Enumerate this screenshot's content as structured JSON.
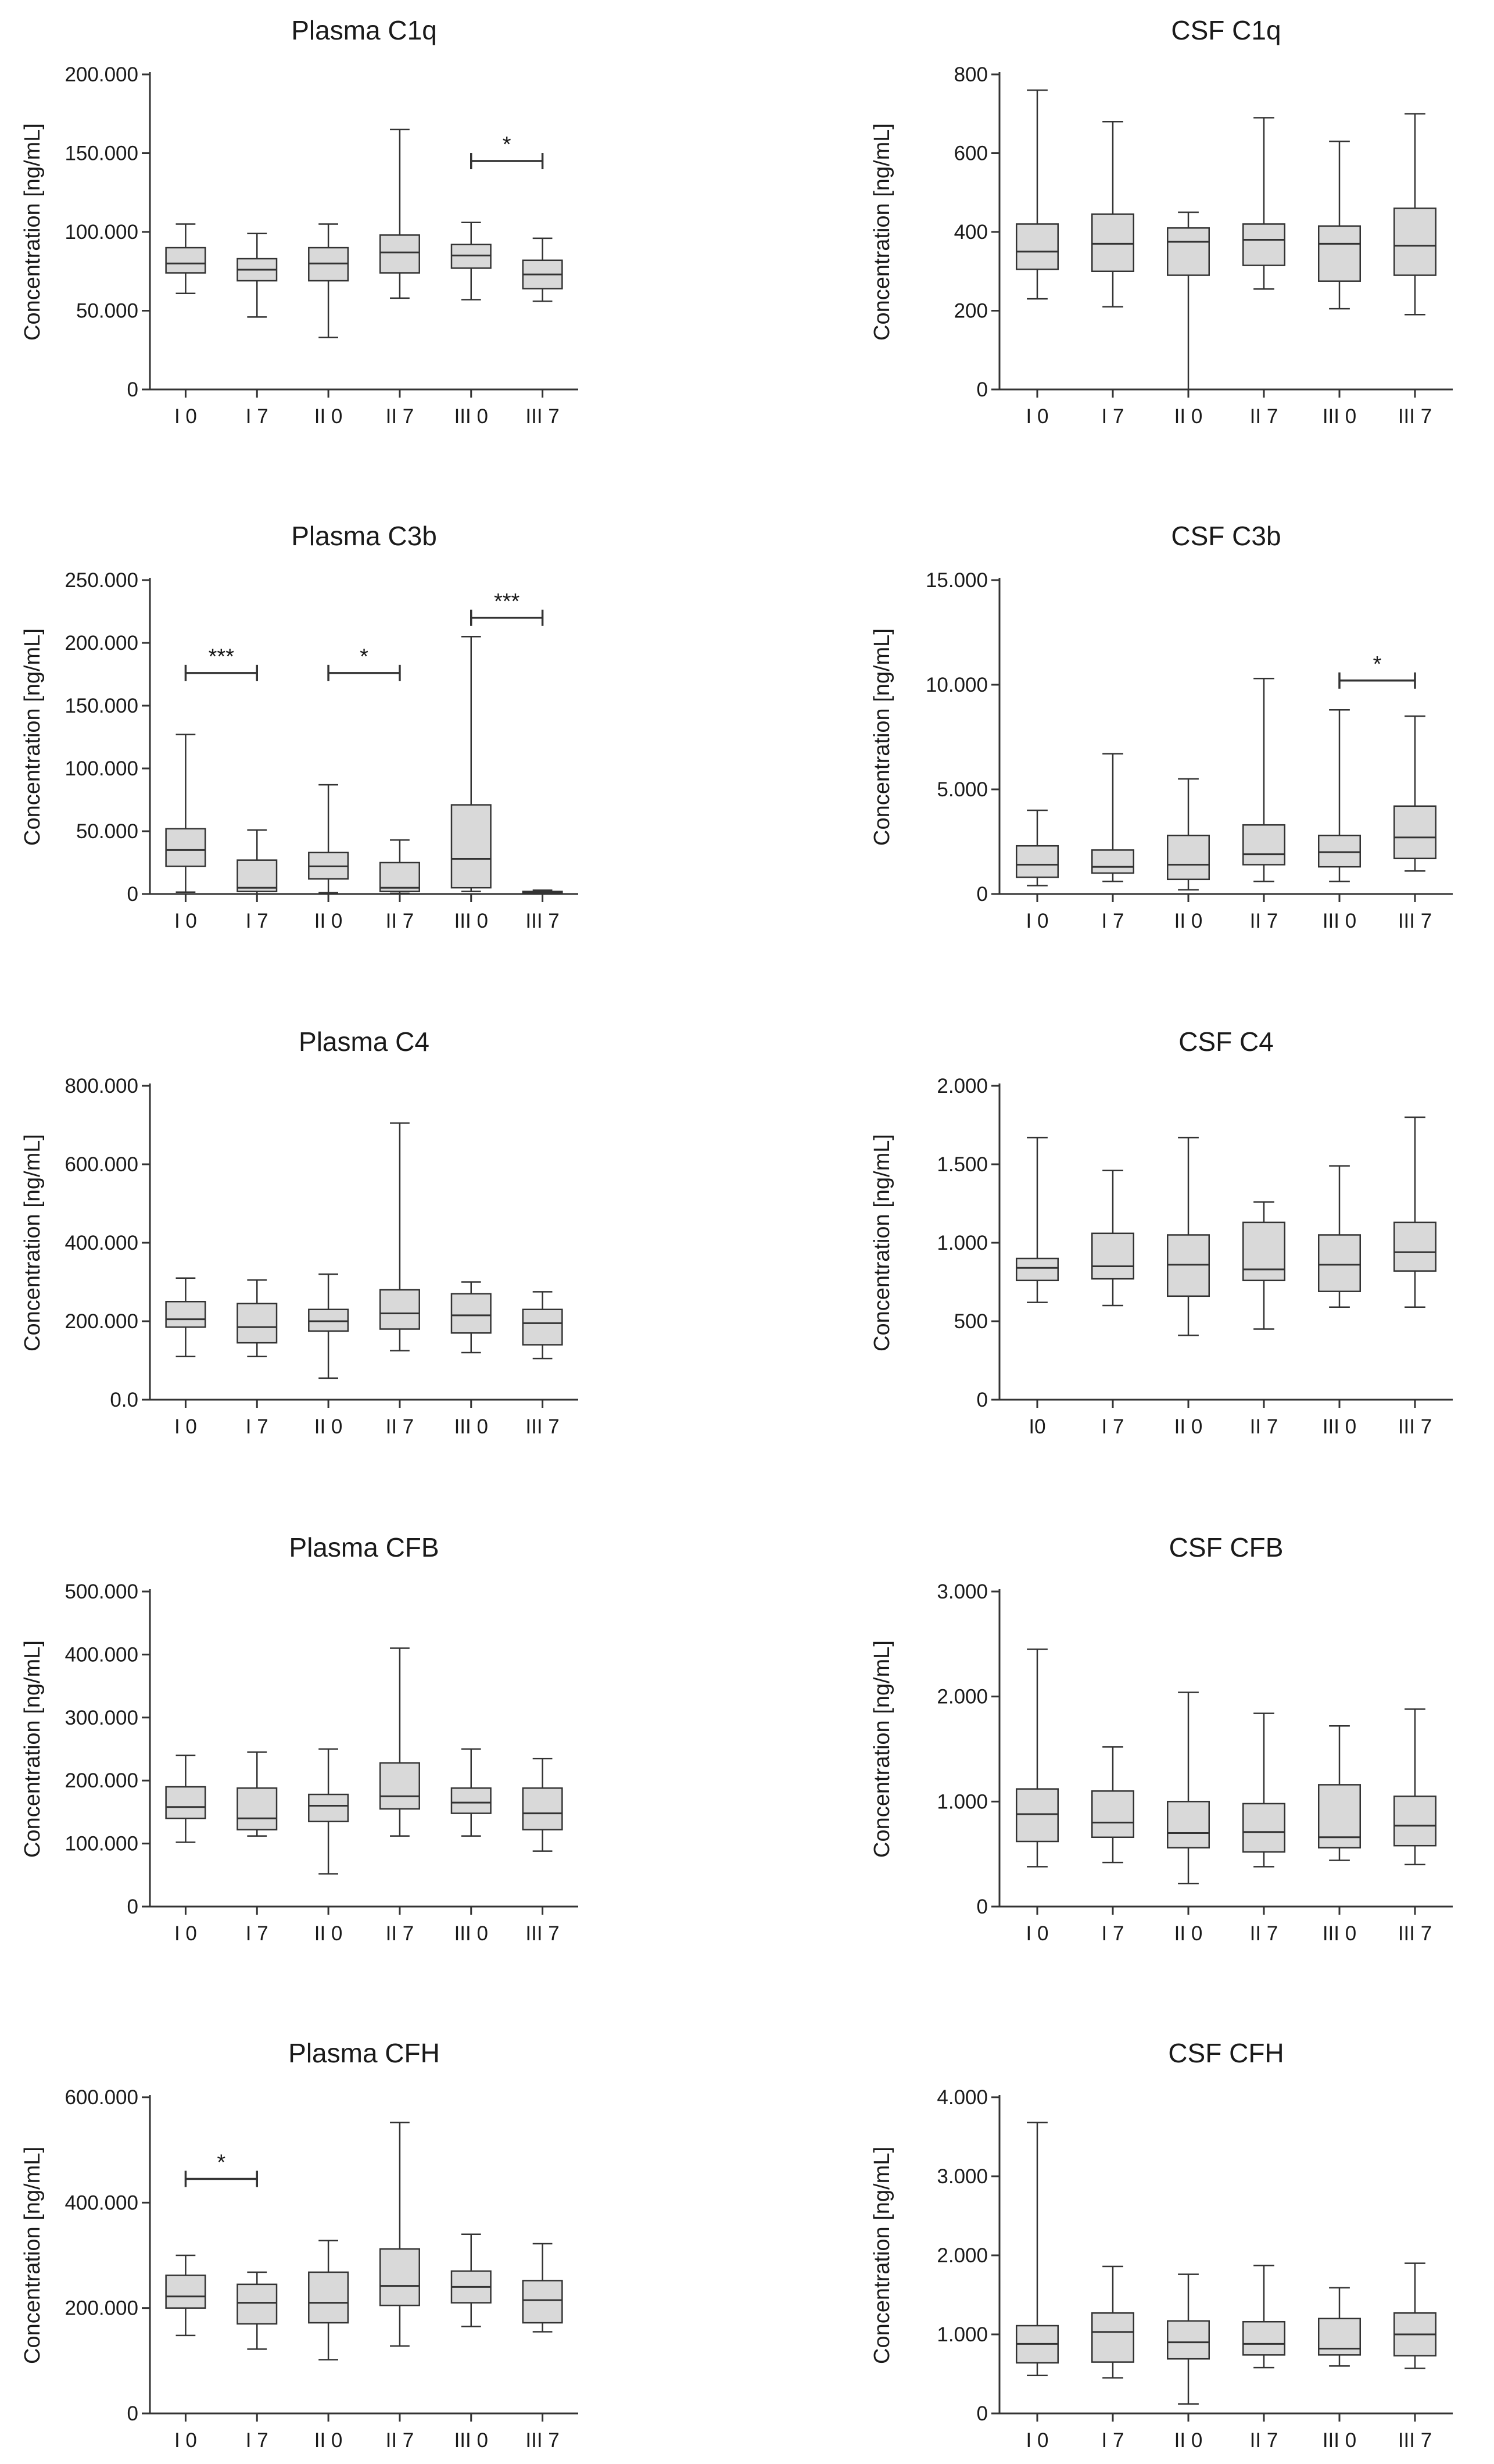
{
  "figure": {
    "colors": {
      "box_fill": "#d9d9d9",
      "line": "#333333",
      "text": "#1a1a1a",
      "background": "#ffffff"
    }
  },
  "chart_data": [
    {
      "type": "box",
      "title": "Plasma C1q",
      "ylabel": "Concentration [ng/mL]",
      "ylim": [
        0,
        200000
      ],
      "yticks": [
        0,
        50000,
        100000,
        150000,
        200000
      ],
      "ytick_labels": [
        "0",
        "50.000",
        "100.000",
        "150.000",
        "200.000"
      ],
      "categories": [
        "I 0",
        "I 7",
        "II 0",
        "II 7",
        "III 0",
        "III 7"
      ],
      "boxes": [
        {
          "min": 61000,
          "q1": 74000,
          "median": 80000,
          "q3": 90000,
          "max": 105000
        },
        {
          "min": 46000,
          "q1": 69000,
          "median": 76000,
          "q3": 83000,
          "max": 99000
        },
        {
          "min": 33000,
          "q1": 69000,
          "median": 80000,
          "q3": 90000,
          "max": 105000
        },
        {
          "min": 58000,
          "q1": 74000,
          "median": 87000,
          "q3": 98000,
          "max": 165000
        },
        {
          "min": 57000,
          "q1": 77000,
          "median": 85000,
          "q3": 92000,
          "max": 106000
        },
        {
          "min": 56000,
          "q1": 64000,
          "median": 73000,
          "q3": 82000,
          "max": 96000
        }
      ],
      "significance": [
        {
          "from": 4,
          "to": 5,
          "label": "*",
          "y": 145000
        }
      ]
    },
    {
      "type": "box",
      "title": "CSF C1q",
      "ylabel": "Concentration [ng/mL]",
      "ylim": [
        0,
        800
      ],
      "yticks": [
        0,
        200,
        400,
        600,
        800
      ],
      "ytick_labels": [
        "0",
        "200",
        "400",
        "600",
        "800"
      ],
      "categories": [
        "I 0",
        "I 7",
        "II 0",
        "II 7",
        "III 0",
        "III 7"
      ],
      "boxes": [
        {
          "min": 230,
          "q1": 305,
          "median": 350,
          "q3": 420,
          "max": 760
        },
        {
          "min": 210,
          "q1": 300,
          "median": 370,
          "q3": 445,
          "max": 680
        },
        {
          "min": 0,
          "q1": 290,
          "median": 375,
          "q3": 410,
          "max": 450
        },
        {
          "min": 255,
          "q1": 315,
          "median": 380,
          "q3": 420,
          "max": 690
        },
        {
          "min": 205,
          "q1": 275,
          "median": 370,
          "q3": 415,
          "max": 630
        },
        {
          "min": 190,
          "q1": 290,
          "median": 365,
          "q3": 460,
          "max": 700
        }
      ],
      "significance": []
    },
    {
      "type": "box",
      "title": "Plasma C3b",
      "ylabel": "Concentration [ng/mL]",
      "ylim": [
        0,
        250000
      ],
      "yticks": [
        0,
        50000,
        100000,
        150000,
        200000,
        250000
      ],
      "ytick_labels": [
        "0",
        "50.000",
        "100.000",
        "150.000",
        "200.000",
        "250.000"
      ],
      "categories": [
        "I 0",
        "I 7",
        "II 0",
        "II 7",
        "III 0",
        "III 7"
      ],
      "boxes": [
        {
          "min": 1500,
          "q1": 22000,
          "median": 35000,
          "q3": 52000,
          "max": 127000
        },
        {
          "min": 0,
          "q1": 2000,
          "median": 5000,
          "q3": 27000,
          "max": 51000
        },
        {
          "min": 1000,
          "q1": 12000,
          "median": 22000,
          "q3": 33000,
          "max": 87000
        },
        {
          "min": 500,
          "q1": 2000,
          "median": 5000,
          "q3": 25000,
          "max": 43000
        },
        {
          "min": 2000,
          "q1": 5000,
          "median": 28000,
          "q3": 71000,
          "max": 205000
        },
        {
          "min": 0,
          "q1": 500,
          "median": 1000,
          "q3": 2000,
          "max": 3000
        }
      ],
      "significance": [
        {
          "from": 0,
          "to": 1,
          "label": "***",
          "y": 176000
        },
        {
          "from": 2,
          "to": 3,
          "label": "*",
          "y": 176000
        },
        {
          "from": 4,
          "to": 5,
          "label": "***",
          "y": 220000
        }
      ]
    },
    {
      "type": "box",
      "title": "CSF C3b",
      "ylabel": "Concentration [ng/mL]",
      "ylim": [
        0,
        15000
      ],
      "yticks": [
        0,
        5000,
        10000,
        15000
      ],
      "ytick_labels": [
        "0",
        "5.000",
        "10.000",
        "15.000"
      ],
      "categories": [
        "I 0",
        "I 7",
        "II 0",
        "II 7",
        "III 0",
        "III 7"
      ],
      "boxes": [
        {
          "min": 400,
          "q1": 800,
          "median": 1400,
          "q3": 2300,
          "max": 4000
        },
        {
          "min": 600,
          "q1": 1000,
          "median": 1300,
          "q3": 2100,
          "max": 6700
        },
        {
          "min": 200,
          "q1": 700,
          "median": 1400,
          "q3": 2800,
          "max": 5500
        },
        {
          "min": 600,
          "q1": 1400,
          "median": 1900,
          "q3": 3300,
          "max": 10300
        },
        {
          "min": 600,
          "q1": 1300,
          "median": 2000,
          "q3": 2800,
          "max": 8800
        },
        {
          "min": 1100,
          "q1": 1700,
          "median": 2700,
          "q3": 4200,
          "max": 8500
        }
      ],
      "significance": [
        {
          "from": 4,
          "to": 5,
          "label": "*",
          "y": 10200
        }
      ]
    },
    {
      "type": "box",
      "title": "Plasma C4",
      "ylabel": "Concentration [ng/mL]",
      "ylim": [
        0,
        800000
      ],
      "yticks": [
        0,
        200000,
        400000,
        600000,
        800000
      ],
      "ytick_labels": [
        "0.0",
        "200.000",
        "400.000",
        "600.000",
        "800.000"
      ],
      "categories": [
        "I 0",
        "I 7",
        "II 0",
        "II 7",
        "III 0",
        "III 7"
      ],
      "boxes": [
        {
          "min": 110000,
          "q1": 185000,
          "median": 205000,
          "q3": 250000,
          "max": 310000
        },
        {
          "min": 110000,
          "q1": 145000,
          "median": 185000,
          "q3": 245000,
          "max": 305000
        },
        {
          "min": 55000,
          "q1": 175000,
          "median": 200000,
          "q3": 230000,
          "max": 320000
        },
        {
          "min": 125000,
          "q1": 180000,
          "median": 220000,
          "q3": 280000,
          "max": 705000
        },
        {
          "min": 120000,
          "q1": 170000,
          "median": 215000,
          "q3": 270000,
          "max": 300000
        },
        {
          "min": 105000,
          "q1": 140000,
          "median": 195000,
          "q3": 230000,
          "max": 275000
        }
      ],
      "significance": []
    },
    {
      "type": "box",
      "title": "CSF C4",
      "ylabel": "Concentration [ng/mL]",
      "ylim": [
        0,
        2000
      ],
      "yticks": [
        0,
        500,
        1000,
        1500,
        2000
      ],
      "ytick_labels": [
        "0",
        "500",
        "1.000",
        "1.500",
        "2.000"
      ],
      "categories": [
        "I0",
        "I 7",
        "II 0",
        "II 7",
        "III 0",
        "III 7"
      ],
      "boxes": [
        {
          "min": 620,
          "q1": 760,
          "median": 840,
          "q3": 900,
          "max": 1670
        },
        {
          "min": 600,
          "q1": 770,
          "median": 850,
          "q3": 1060,
          "max": 1460
        },
        {
          "min": 410,
          "q1": 660,
          "median": 860,
          "q3": 1050,
          "max": 1670
        },
        {
          "min": 450,
          "q1": 760,
          "median": 830,
          "q3": 1130,
          "max": 1260
        },
        {
          "min": 590,
          "q1": 690,
          "median": 860,
          "q3": 1050,
          "max": 1490
        },
        {
          "min": 590,
          "q1": 820,
          "median": 940,
          "q3": 1130,
          "max": 1800
        }
      ],
      "significance": []
    },
    {
      "type": "box",
      "title": "Plasma CFB",
      "ylabel": "Concentration [ng/mL]",
      "ylim": [
        0,
        500000
      ],
      "yticks": [
        0,
        100000,
        200000,
        300000,
        400000,
        500000
      ],
      "ytick_labels": [
        "0",
        "100.000",
        "200.000",
        "300.000",
        "400.000",
        "500.000"
      ],
      "categories": [
        "I 0",
        "I 7",
        "II 0",
        "II 7",
        "III 0",
        "III 7"
      ],
      "boxes": [
        {
          "min": 102000,
          "q1": 140000,
          "median": 158000,
          "q3": 190000,
          "max": 240000
        },
        {
          "min": 112000,
          "q1": 122000,
          "median": 140000,
          "q3": 188000,
          "max": 245000
        },
        {
          "min": 52000,
          "q1": 135000,
          "median": 160000,
          "q3": 178000,
          "max": 250000
        },
        {
          "min": 112000,
          "q1": 155000,
          "median": 175000,
          "q3": 228000,
          "max": 410000
        },
        {
          "min": 112000,
          "q1": 148000,
          "median": 165000,
          "q3": 188000,
          "max": 250000
        },
        {
          "min": 88000,
          "q1": 122000,
          "median": 148000,
          "q3": 188000,
          "max": 235000
        }
      ],
      "significance": []
    },
    {
      "type": "box",
      "title": "CSF CFB",
      "ylabel": "Concentration [ng/mL]",
      "ylim": [
        0,
        3000
      ],
      "yticks": [
        0,
        1000,
        2000,
        3000
      ],
      "ytick_labels": [
        "0",
        "1.000",
        "2.000",
        "3.000"
      ],
      "categories": [
        "I 0",
        "I 7",
        "II 0",
        "II 7",
        "III 0",
        "III 7"
      ],
      "boxes": [
        {
          "min": 380,
          "q1": 620,
          "median": 880,
          "q3": 1120,
          "max": 2450
        },
        {
          "min": 420,
          "q1": 660,
          "median": 800,
          "q3": 1100,
          "max": 1520
        },
        {
          "min": 220,
          "q1": 560,
          "median": 700,
          "q3": 1000,
          "max": 2040
        },
        {
          "min": 380,
          "q1": 520,
          "median": 710,
          "q3": 980,
          "max": 1840
        },
        {
          "min": 440,
          "q1": 560,
          "median": 660,
          "q3": 1160,
          "max": 1720
        },
        {
          "min": 400,
          "q1": 580,
          "median": 770,
          "q3": 1050,
          "max": 1880
        }
      ],
      "significance": []
    },
    {
      "type": "box",
      "title": "Plasma CFH",
      "ylabel": "Concentration [ng/mL]",
      "ylim": [
        0,
        600000
      ],
      "yticks": [
        0,
        200000,
        400000,
        600000
      ],
      "ytick_labels": [
        "0",
        "200.000",
        "400.000",
        "600.000"
      ],
      "categories": [
        "I 0",
        "I 7",
        "II 0",
        "II 7",
        "III 0",
        "III 7"
      ],
      "boxes": [
        {
          "min": 148000,
          "q1": 200000,
          "median": 222000,
          "q3": 262000,
          "max": 300000
        },
        {
          "min": 122000,
          "q1": 170000,
          "median": 210000,
          "q3": 245000,
          "max": 268000
        },
        {
          "min": 102000,
          "q1": 172000,
          "median": 210000,
          "q3": 268000,
          "max": 328000
        },
        {
          "min": 128000,
          "q1": 205000,
          "median": 242000,
          "q3": 312000,
          "max": 552000
        },
        {
          "min": 165000,
          "q1": 210000,
          "median": 240000,
          "q3": 270000,
          "max": 340000
        },
        {
          "min": 155000,
          "q1": 172000,
          "median": 215000,
          "q3": 252000,
          "max": 322000
        }
      ],
      "significance": [
        {
          "from": 0,
          "to": 1,
          "label": "*",
          "y": 445000
        }
      ]
    },
    {
      "type": "box",
      "title": "CSF CFH",
      "ylabel": "Concentration [ng/mL]",
      "ylim": [
        0,
        4000
      ],
      "yticks": [
        0,
        1000,
        2000,
        3000,
        4000
      ],
      "ytick_labels": [
        "0",
        "1.000",
        "2.000",
        "3.000",
        "4.000"
      ],
      "categories": [
        "I 0",
        "I 7",
        "II 0",
        "II 7",
        "III 0",
        "III 7"
      ],
      "boxes": [
        {
          "min": 480,
          "q1": 640,
          "median": 880,
          "q3": 1110,
          "max": 3680
        },
        {
          "min": 450,
          "q1": 650,
          "median": 1030,
          "q3": 1270,
          "max": 1860
        },
        {
          "min": 120,
          "q1": 690,
          "median": 900,
          "q3": 1170,
          "max": 1760
        },
        {
          "min": 580,
          "q1": 740,
          "median": 880,
          "q3": 1160,
          "max": 1870
        },
        {
          "min": 600,
          "q1": 740,
          "median": 820,
          "q3": 1200,
          "max": 1590
        },
        {
          "min": 570,
          "q1": 730,
          "median": 1000,
          "q3": 1270,
          "max": 1900
        }
      ],
      "significance": []
    }
  ]
}
